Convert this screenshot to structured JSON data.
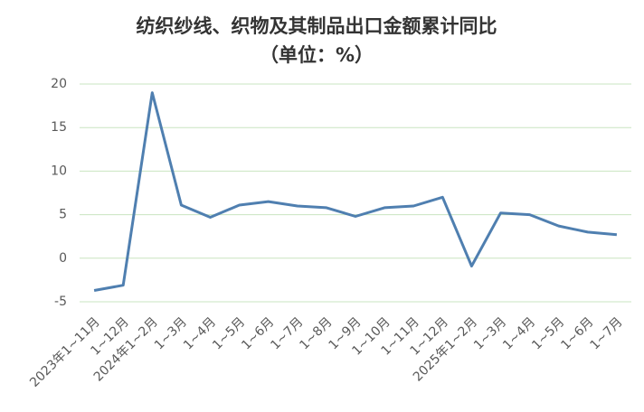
{
  "chart_data": {
    "type": "line",
    "title": "纺织纱线、织物及其制品出口金额累计同比",
    "subtitle": "（单位：%）",
    "categories": [
      "2023年1~11月",
      "1~12月",
      "2024年1~2月",
      "1~3月",
      "1~4月",
      "1~5月",
      "1~6月",
      "1~7月",
      "1~8月",
      "1~9月",
      "1~10月",
      "1~11月",
      "1~12月",
      "2025年1~2月",
      "1~3月",
      "1~4月",
      "1~5月",
      "1~6月",
      "1~7月"
    ],
    "values": [
      -3.7,
      -3.1,
      19.0,
      6.1,
      4.7,
      6.1,
      6.5,
      6.0,
      5.8,
      4.8,
      5.8,
      6.0,
      7.0,
      -0.9,
      5.2,
      5.0,
      3.7,
      3.0,
      2.7
    ],
    "color": "#4f7fb0",
    "ylim": [
      -5,
      20
    ],
    "yticks": [
      -5,
      0,
      5,
      10,
      15,
      20
    ],
    "grid": true
  }
}
